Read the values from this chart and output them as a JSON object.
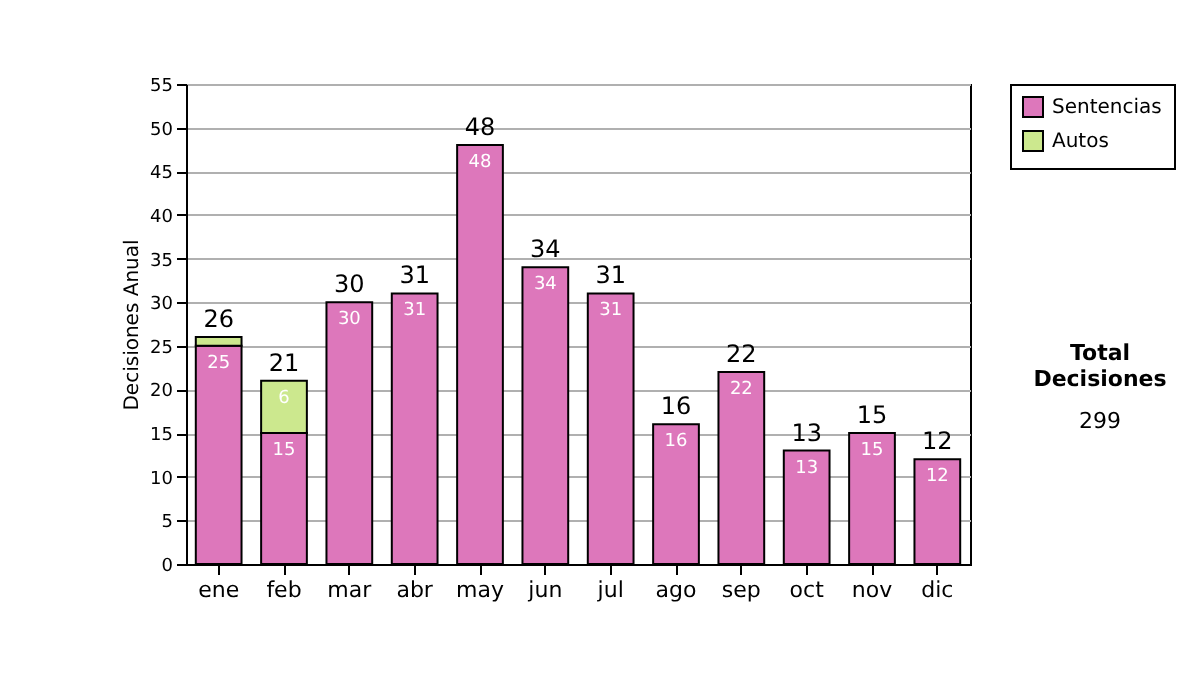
{
  "chart_data": {
    "type": "bar",
    "stacked": true,
    "ylabel": "Decisiones Anual",
    "categories": [
      "ene",
      "feb",
      "mar",
      "abr",
      "may",
      "jun",
      "jul",
      "ago",
      "sep",
      "oct",
      "nov",
      "dic"
    ],
    "series": [
      {
        "name": "Sentencias",
        "color": "#dd77bb",
        "values": [
          25,
          15,
          30,
          31,
          48,
          34,
          31,
          16,
          22,
          13,
          15,
          12
        ],
        "value_labels": [
          "25",
          "15",
          "30",
          "31",
          "48",
          "34",
          "31",
          "16",
          "22",
          "13",
          "15",
          "12"
        ]
      },
      {
        "name": "Autos",
        "color": "#cce88e",
        "values": [
          1,
          6,
          null,
          null,
          null,
          null,
          null,
          null,
          null,
          null,
          null,
          null
        ],
        "value_labels": [
          null,
          "6",
          null,
          null,
          null,
          null,
          null,
          null,
          null,
          null,
          null,
          null
        ]
      }
    ],
    "totals": [
      "26",
      "21",
      "30",
      "31",
      "48",
      "34",
      "31",
      "16",
      "22",
      "13",
      "15",
      "12"
    ],
    "ylim": [
      0,
      55
    ],
    "yticks": [
      0,
      5,
      10,
      15,
      20,
      25,
      30,
      35,
      40,
      45,
      50,
      55
    ],
    "grid": "y",
    "legend": "right",
    "annotations": [
      "Total Decisiones",
      "299"
    ]
  }
}
